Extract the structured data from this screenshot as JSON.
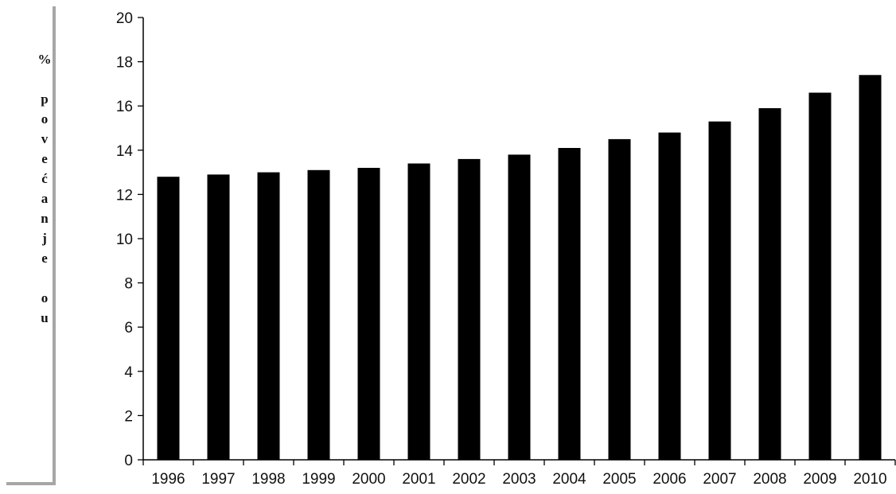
{
  "chart_data": {
    "type": "bar",
    "categories": [
      "1996",
      "1997",
      "1998",
      "1999",
      "2000",
      "2001",
      "2002",
      "2003",
      "2004",
      "2005",
      "2006",
      "2007",
      "2008",
      "2009",
      "2010"
    ],
    "values": [
      12.8,
      12.9,
      13.0,
      13.1,
      13.2,
      13.4,
      13.6,
      13.8,
      14.1,
      14.5,
      14.8,
      15.3,
      15.9,
      16.6,
      17.4
    ],
    "ylabel": "% povećanje ou",
    "ylim": [
      0,
      20
    ],
    "yticks": [
      "0",
      "2",
      "4",
      "6",
      "8",
      "10",
      "12",
      "14",
      "16",
      "18",
      "20"
    ],
    "bar_color": "#000000",
    "grid": false,
    "legend": "none"
  }
}
